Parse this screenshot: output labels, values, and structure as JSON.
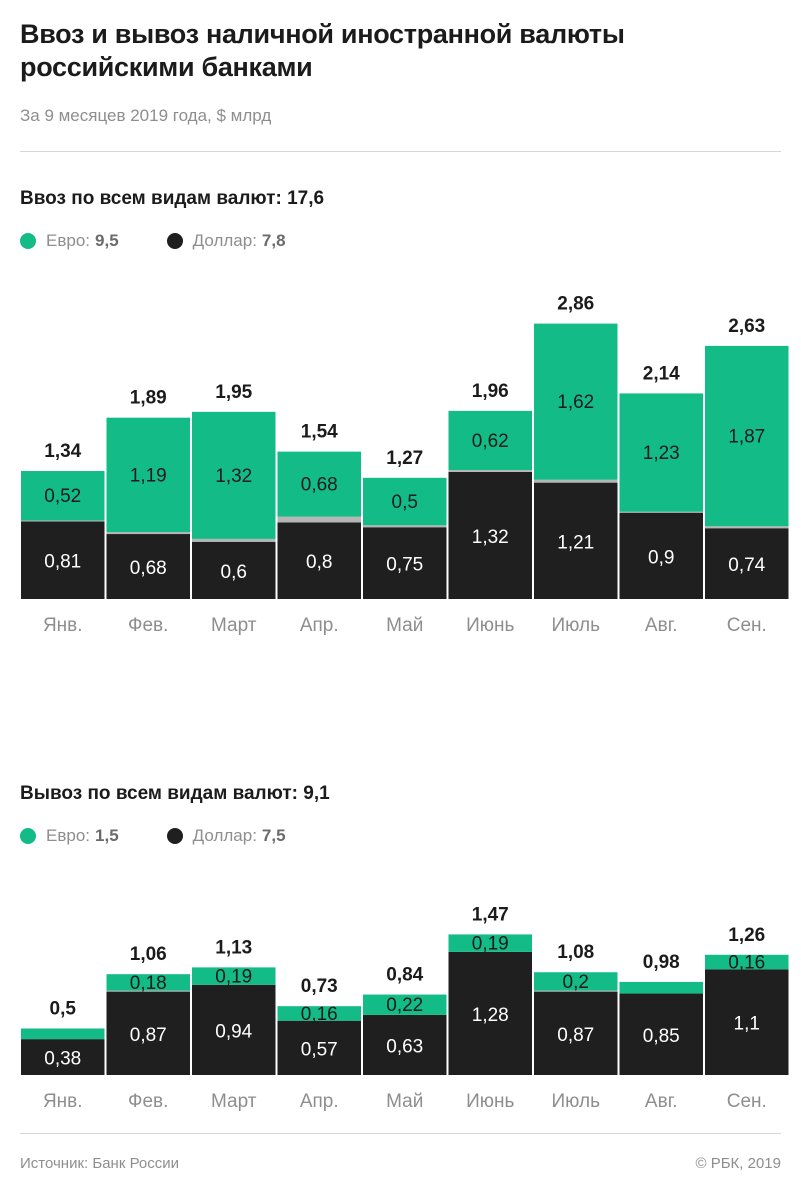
{
  "title": "Ввоз и вывоз наличной иностранной валюты российскими банками",
  "subtitle": "За 9 месяцев 2019 года, $ млрд",
  "colors": {
    "euro": "#13bb86",
    "dollar": "#1f1f1f",
    "other": "#b5b5b5",
    "axis_label": "#8e8e8e"
  },
  "import_section": {
    "title": "Ввоз по всем видам валют: 17,6",
    "legend": {
      "euro_label": "Евро:",
      "euro_value": "9,5",
      "dollar_label": "Доллар:",
      "dollar_value": "7,8"
    }
  },
  "export_section": {
    "title": "Вывоз по всем видам валют: 9,1",
    "legend": {
      "euro_label": "Евро:",
      "euro_value": "1,5",
      "dollar_label": "Доллар:",
      "dollar_value": "7,5"
    }
  },
  "source": "Источник: Банк России",
  "copyright": "© РБК, 2019",
  "chart_data": [
    {
      "type": "bar",
      "stacked": true,
      "categories": [
        "Янв.",
        "Фев.",
        "Март",
        "Апр.",
        "Май",
        "Июнь",
        "Июль",
        "Авг.",
        "Сен."
      ],
      "series": [
        {
          "name": "Доллар",
          "values": [
            0.81,
            0.68,
            0.6,
            0.8,
            0.75,
            1.32,
            1.21,
            0.9,
            0.74
          ],
          "labels": [
            "0,81",
            "0,68",
            "0,6",
            "0,8",
            "0,75",
            "1,32",
            "1,21",
            "0,9",
            "0,74"
          ]
        },
        {
          "values": [
            0.01,
            0.02,
            0.03,
            0.06,
            0.02,
            0.02,
            0.03,
            0.01,
            0.02
          ],
          "labels": [
            "",
            "",
            "",
            "",
            "",
            "",
            "",
            "",
            ""
          ]
        },
        {
          "name": "Евро",
          "values": [
            0.52,
            1.19,
            1.32,
            0.68,
            0.5,
            0.62,
            1.62,
            1.23,
            1.87
          ],
          "labels": [
            "0,52",
            "1,19",
            "1,32",
            "0,68",
            "0,5",
            "0,62",
            "1,62",
            "1,23",
            "1,87"
          ]
        }
      ],
      "totals": [
        "1,34",
        "1,89",
        "1,95",
        "1,54",
        "1,27",
        "1,96",
        "2,86",
        "2,14",
        "2,63"
      ],
      "total_values": [
        1.34,
        1.89,
        1.95,
        1.54,
        1.27,
        1.96,
        2.86,
        2.14,
        2.63
      ],
      "ylim": [
        0,
        3.0
      ],
      "grid": false,
      "legend": "top-left"
    },
    {
      "type": "bar",
      "stacked": true,
      "categories": [
        "Янв.",
        "Фев.",
        "Март",
        "Апр.",
        "Май",
        "Июнь",
        "Июль",
        "Авг.",
        "Сен."
      ],
      "series": [
        {
          "name": "Доллар",
          "values": [
            0.38,
            0.87,
            0.94,
            0.57,
            0.63,
            1.28,
            0.87,
            0.85,
            1.1
          ],
          "labels": [
            "0,38",
            "0,87",
            "0,94",
            "0,57",
            "0,63",
            "1,28",
            "0,87",
            "0,85",
            "1,1"
          ]
        },
        {
          "values": [
            0.0,
            0.01,
            0.0,
            0.0,
            0.0,
            0.0,
            0.01,
            0.0,
            0.0
          ],
          "labels": [
            "",
            "",
            "",
            "",
            "",
            "",
            "",
            "",
            ""
          ]
        },
        {
          "name": "Евро",
          "values": [
            0.12,
            0.18,
            0.19,
            0.16,
            0.22,
            0.19,
            0.2,
            0.13,
            0.16
          ],
          "labels": [
            "",
            "0,18",
            "0,19",
            "0,16",
            "0,22",
            "0,19",
            "0,2",
            "",
            "0,16"
          ]
        }
      ],
      "totals": [
        "0,5",
        "1,06",
        "1,13",
        "0,73",
        "0,84",
        "1,47",
        "1,08",
        "0,98",
        "1,26"
      ],
      "total_values": [
        0.5,
        1.06,
        1.13,
        0.73,
        0.84,
        1.47,
        1.08,
        0.98,
        1.26
      ],
      "ylim": [
        0,
        3.0
      ],
      "grid": false,
      "legend": "top-left"
    }
  ]
}
